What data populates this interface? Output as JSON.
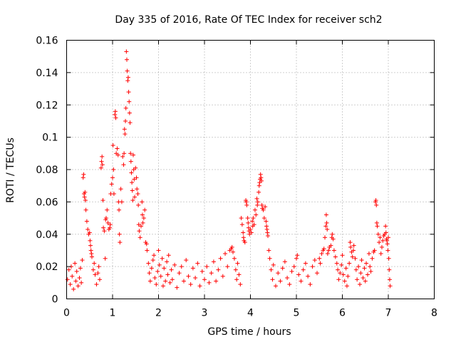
{
  "chart_data": {
    "type": "scatter",
    "title": "Day 335 of 2016, Rate Of TEC Index for receiver sch2",
    "xlabel": "GPS time / hours",
    "ylabel": "ROTI / TECUs",
    "xlim": [
      0,
      8
    ],
    "ylim": [
      0,
      0.16
    ],
    "x_ticks": [
      "0",
      "1",
      "2",
      "3",
      "4",
      "5",
      "6",
      "7",
      "8"
    ],
    "y_ticks": [
      "0",
      "0.02",
      "0.04",
      "0.06",
      "0.08",
      "0.1",
      "0.12",
      "0.14",
      "0.16"
    ],
    "grid": true,
    "marker": "+",
    "series_color": "#ff0000",
    "series": [
      {
        "name": "ROTI",
        "points": [
          [
            0.02,
            0.012
          ],
          [
            0.05,
            0.018
          ],
          [
            0.08,
            0.009
          ],
          [
            0.1,
            0.02
          ],
          [
            0.12,
            0.014
          ],
          [
            0.15,
            0.006
          ],
          [
            0.18,
            0.022
          ],
          [
            0.2,
            0.011
          ],
          [
            0.22,
            0.017
          ],
          [
            0.25,
            0.008
          ],
          [
            0.28,
            0.013
          ],
          [
            0.3,
            0.019
          ],
          [
            0.32,
            0.01
          ],
          [
            0.34,
            0.024
          ],
          [
            0.36,
            0.075
          ],
          [
            0.37,
            0.077
          ],
          [
            0.38,
            0.065
          ],
          [
            0.39,
            0.063
          ],
          [
            0.4,
            0.066
          ],
          [
            0.41,
            0.061
          ],
          [
            0.42,
            0.055
          ],
          [
            0.44,
            0.048
          ],
          [
            0.46,
            0.043
          ],
          [
            0.48,
            0.04
          ],
          [
            0.5,
            0.041
          ],
          [
            0.51,
            0.036
          ],
          [
            0.52,
            0.033
          ],
          [
            0.53,
            0.03
          ],
          [
            0.54,
            0.028
          ],
          [
            0.55,
            0.026
          ],
          [
            0.58,
            0.018
          ],
          [
            0.6,
            0.022
          ],
          [
            0.62,
            0.015
          ],
          [
            0.65,
            0.009
          ],
          [
            0.68,
            0.016
          ],
          [
            0.7,
            0.02
          ],
          [
            0.72,
            0.012
          ],
          [
            0.75,
            0.081
          ],
          [
            0.76,
            0.085
          ],
          [
            0.77,
            0.088
          ],
          [
            0.78,
            0.083
          ],
          [
            0.79,
            0.061
          ],
          [
            0.8,
            0.044
          ],
          [
            0.82,
            0.042
          ],
          [
            0.84,
            0.025
          ],
          [
            0.85,
            0.049
          ],
          [
            0.86,
            0.05
          ],
          [
            0.88,
            0.055
          ],
          [
            0.9,
            0.047
          ],
          [
            0.92,
            0.043
          ],
          [
            0.94,
            0.044
          ],
          [
            0.95,
            0.046
          ],
          [
            0.96,
            0.065
          ],
          [
            0.98,
            0.071
          ],
          [
            1.0,
            0.075
          ],
          [
            1.01,
            0.095
          ],
          [
            1.02,
            0.08
          ],
          [
            1.03,
            0.065
          ],
          [
            1.05,
            0.114
          ],
          [
            1.06,
            0.116
          ],
          [
            1.07,
            0.112
          ],
          [
            1.08,
            0.09
          ],
          [
            1.1,
            0.093
          ],
          [
            1.12,
            0.089
          ],
          [
            1.13,
            0.06
          ],
          [
            1.14,
            0.055
          ],
          [
            1.15,
            0.04
          ],
          [
            1.16,
            0.035
          ],
          [
            1.18,
            0.068
          ],
          [
            1.2,
            0.06
          ],
          [
            1.22,
            0.088
          ],
          [
            1.24,
            0.083
          ],
          [
            1.25,
            0.09
          ],
          [
            1.26,
            0.105
          ],
          [
            1.27,
            0.102
          ],
          [
            1.28,
            0.11
          ],
          [
            1.29,
            0.118
          ],
          [
            1.3,
            0.153
          ],
          [
            1.31,
            0.148
          ],
          [
            1.32,
            0.141
          ],
          [
            1.33,
            0.135
          ],
          [
            1.34,
            0.137
          ],
          [
            1.35,
            0.128
          ],
          [
            1.36,
            0.122
          ],
          [
            1.37,
            0.115
          ],
          [
            1.38,
            0.109
          ],
          [
            1.39,
            0.09
          ],
          [
            1.4,
            0.085
          ],
          [
            1.41,
            0.078
          ],
          [
            1.42,
            0.072
          ],
          [
            1.43,
            0.067
          ],
          [
            1.44,
            0.061
          ],
          [
            1.45,
            0.089
          ],
          [
            1.46,
            0.08
          ],
          [
            1.47,
            0.074
          ],
          [
            1.48,
            0.063
          ],
          [
            1.5,
            0.081
          ],
          [
            1.52,
            0.075
          ],
          [
            1.53,
            0.068
          ],
          [
            1.55,
            0.065
          ],
          [
            1.56,
            0.058
          ],
          [
            1.57,
            0.046
          ],
          [
            1.58,
            0.042
          ],
          [
            1.6,
            0.038
          ],
          [
            1.62,
            0.045
          ],
          [
            1.64,
            0.06
          ],
          [
            1.65,
            0.052
          ],
          [
            1.66,
            0.047
          ],
          [
            1.68,
            0.05
          ],
          [
            1.7,
            0.055
          ],
          [
            1.72,
            0.035
          ],
          [
            1.74,
            0.034
          ],
          [
            1.75,
            0.03
          ],
          [
            1.78,
            0.022
          ],
          [
            1.8,
            0.016
          ],
          [
            1.82,
            0.011
          ],
          [
            1.85,
            0.019
          ],
          [
            1.88,
            0.024
          ],
          [
            1.9,
            0.027
          ],
          [
            1.92,
            0.013
          ],
          [
            1.95,
            0.009
          ],
          [
            1.98,
            0.017
          ],
          [
            2.0,
            0.03
          ],
          [
            2.02,
            0.021
          ],
          [
            2.05,
            0.014
          ],
          [
            2.08,
            0.025
          ],
          [
            2.1,
            0.008
          ],
          [
            2.12,
            0.019
          ],
          [
            2.15,
            0.011
          ],
          [
            2.18,
            0.023
          ],
          [
            2.2,
            0.015
          ],
          [
            2.22,
            0.027
          ],
          [
            2.25,
            0.01
          ],
          [
            2.28,
            0.018
          ],
          [
            2.3,
            0.012
          ],
          [
            2.35,
            0.021
          ],
          [
            2.4,
            0.007
          ],
          [
            2.45,
            0.016
          ],
          [
            2.5,
            0.02
          ],
          [
            2.55,
            0.011
          ],
          [
            2.6,
            0.024
          ],
          [
            2.65,
            0.014
          ],
          [
            2.7,
            0.009
          ],
          [
            2.75,
            0.019
          ],
          [
            2.8,
            0.013
          ],
          [
            2.85,
            0.022
          ],
          [
            2.9,
            0.008
          ],
          [
            2.95,
            0.017
          ],
          [
            3.0,
            0.012
          ],
          [
            3.05,
            0.02
          ],
          [
            3.1,
            0.01
          ],
          [
            3.15,
            0.016
          ],
          [
            3.2,
            0.023
          ],
          [
            3.25,
            0.011
          ],
          [
            3.3,
            0.018
          ],
          [
            3.35,
            0.025
          ],
          [
            3.4,
            0.014
          ],
          [
            3.45,
            0.028
          ],
          [
            3.5,
            0.02
          ],
          [
            3.55,
            0.03
          ],
          [
            3.58,
            0.031
          ],
          [
            3.6,
            0.032
          ],
          [
            3.62,
            0.029
          ],
          [
            3.65,
            0.025
          ],
          [
            3.68,
            0.018
          ],
          [
            3.7,
            0.012
          ],
          [
            3.72,
            0.022
          ],
          [
            3.75,
            0.015
          ],
          [
            3.78,
            0.009
          ],
          [
            3.8,
            0.05
          ],
          [
            3.82,
            0.046
          ],
          [
            3.84,
            0.041
          ],
          [
            3.85,
            0.038
          ],
          [
            3.86,
            0.036
          ],
          [
            3.88,
            0.035
          ],
          [
            3.9,
            0.061
          ],
          [
            3.91,
            0.06
          ],
          [
            3.92,
            0.058
          ],
          [
            3.94,
            0.05
          ],
          [
            3.95,
            0.047
          ],
          [
            3.96,
            0.044
          ],
          [
            3.97,
            0.042
          ],
          [
            3.98,
            0.04
          ],
          [
            4.0,
            0.043
          ],
          [
            4.02,
            0.041
          ],
          [
            4.04,
            0.048
          ],
          [
            4.05,
            0.045
          ],
          [
            4.06,
            0.05
          ],
          [
            4.08,
            0.046
          ],
          [
            4.1,
            0.055
          ],
          [
            4.12,
            0.052
          ],
          [
            4.14,
            0.062
          ],
          [
            4.15,
            0.058
          ],
          [
            4.16,
            0.06
          ],
          [
            4.18,
            0.066
          ],
          [
            4.19,
            0.07
          ],
          [
            4.2,
            0.072
          ],
          [
            4.21,
            0.074
          ],
          [
            4.22,
            0.077
          ],
          [
            4.23,
            0.075
          ],
          [
            4.24,
            0.073
          ],
          [
            4.25,
            0.058
          ],
          [
            4.26,
            0.056
          ],
          [
            4.28,
            0.055
          ],
          [
            4.3,
            0.05
          ],
          [
            4.32,
            0.057
          ],
          [
            4.34,
            0.048
          ],
          [
            4.35,
            0.045
          ],
          [
            4.36,
            0.043
          ],
          [
            4.37,
            0.041
          ],
          [
            4.38,
            0.039
          ],
          [
            4.4,
            0.03
          ],
          [
            4.42,
            0.025
          ],
          [
            4.45,
            0.018
          ],
          [
            4.48,
            0.012
          ],
          [
            4.5,
            0.021
          ],
          [
            4.55,
            0.008
          ],
          [
            4.6,
            0.016
          ],
          [
            4.65,
            0.011
          ],
          [
            4.7,
            0.019
          ],
          [
            4.75,
            0.023
          ],
          [
            4.8,
            0.013
          ],
          [
            4.85,
            0.009
          ],
          [
            4.9,
            0.017
          ],
          [
            4.95,
            0.02
          ],
          [
            5.0,
            0.025
          ],
          [
            5.02,
            0.027
          ],
          [
            5.05,
            0.015
          ],
          [
            5.1,
            0.011
          ],
          [
            5.15,
            0.018
          ],
          [
            5.2,
            0.022
          ],
          [
            5.25,
            0.014
          ],
          [
            5.3,
            0.009
          ],
          [
            5.35,
            0.02
          ],
          [
            5.4,
            0.024
          ],
          [
            5.45,
            0.016
          ],
          [
            5.5,
            0.025
          ],
          [
            5.52,
            0.022
          ],
          [
            5.55,
            0.028
          ],
          [
            5.58,
            0.03
          ],
          [
            5.6,
            0.031
          ],
          [
            5.62,
            0.038
          ],
          [
            5.64,
            0.045
          ],
          [
            5.65,
            0.052
          ],
          [
            5.66,
            0.047
          ],
          [
            5.67,
            0.043
          ],
          [
            5.68,
            0.028
          ],
          [
            5.7,
            0.03
          ],
          [
            5.72,
            0.032
          ],
          [
            5.75,
            0.033
          ],
          [
            5.77,
            0.038
          ],
          [
            5.78,
            0.04
          ],
          [
            5.8,
            0.037
          ],
          [
            5.82,
            0.03
          ],
          [
            5.85,
            0.026
          ],
          [
            5.88,
            0.022
          ],
          [
            5.9,
            0.018
          ],
          [
            5.92,
            0.012
          ],
          [
            5.95,
            0.016
          ],
          [
            5.98,
            0.021
          ],
          [
            6.0,
            0.027
          ],
          [
            6.02,
            0.015
          ],
          [
            6.05,
            0.011
          ],
          [
            6.08,
            0.019
          ],
          [
            6.1,
            0.008
          ],
          [
            6.12,
            0.014
          ],
          [
            6.15,
            0.022
          ],
          [
            6.17,
            0.035
          ],
          [
            6.18,
            0.032
          ],
          [
            6.2,
            0.029
          ],
          [
            6.22,
            0.026
          ],
          [
            6.24,
            0.03
          ],
          [
            6.25,
            0.033
          ],
          [
            6.28,
            0.025
          ],
          [
            6.3,
            0.018
          ],
          [
            6.32,
            0.012
          ],
          [
            6.35,
            0.02
          ],
          [
            6.38,
            0.009
          ],
          [
            6.4,
            0.016
          ],
          [
            6.42,
            0.024
          ],
          [
            6.45,
            0.013
          ],
          [
            6.48,
            0.019
          ],
          [
            6.5,
            0.011
          ],
          [
            6.52,
            0.022
          ],
          [
            6.55,
            0.015
          ],
          [
            6.58,
            0.028
          ],
          [
            6.6,
            0.02
          ],
          [
            6.62,
            0.017
          ],
          [
            6.65,
            0.025
          ],
          [
            6.68,
            0.029
          ],
          [
            6.7,
            0.03
          ],
          [
            6.72,
            0.06
          ],
          [
            6.73,
            0.061
          ],
          [
            6.74,
            0.058
          ],
          [
            6.75,
            0.047
          ],
          [
            6.76,
            0.045
          ],
          [
            6.78,
            0.04
          ],
          [
            6.8,
            0.035
          ],
          [
            6.82,
            0.038
          ],
          [
            6.84,
            0.028
          ],
          [
            6.86,
            0.032
          ],
          [
            6.88,
            0.036
          ],
          [
            6.9,
            0.039
          ],
          [
            6.92,
            0.04
          ],
          [
            6.94,
            0.045
          ],
          [
            6.95,
            0.041
          ],
          [
            6.96,
            0.037
          ],
          [
            6.97,
            0.036
          ],
          [
            6.98,
            0.034
          ],
          [
            6.99,
            0.03
          ],
          [
            7.0,
            0.038
          ],
          [
            7.01,
            0.025
          ],
          [
            7.02,
            0.018
          ],
          [
            7.03,
            0.012
          ],
          [
            7.04,
            0.008
          ]
        ]
      }
    ]
  }
}
